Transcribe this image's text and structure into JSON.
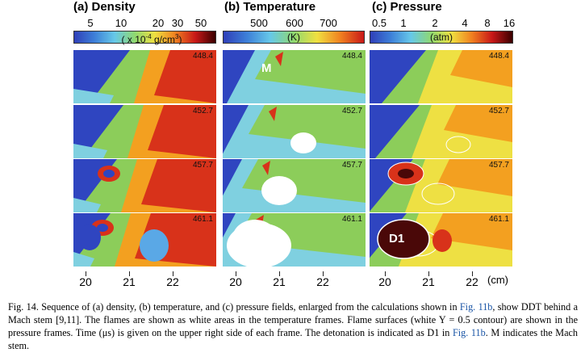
{
  "panels": [
    {
      "key": "density",
      "title": "(a) Density",
      "colorbar_ticks": [
        "5",
        "10",
        "20",
        "30",
        "50"
      ],
      "colorbar_unit": "( x 10",
      "colorbar_unit_exp": "-4",
      "colorbar_unit_tail": " g/cm",
      "colorbar_unit_exp2": "3",
      "colorbar_unit_close": ")",
      "colors": [
        "#2f3fb8",
        "#3d7fd8",
        "#66c8e8",
        "#8fd870",
        "#f0e040",
        "#f08020",
        "#c81818",
        "#3a0000"
      ]
    },
    {
      "key": "temperature",
      "title": "(b) Temperature",
      "colorbar_ticks": [
        "500",
        "600",
        "700"
      ],
      "colorbar_unit": "(K)",
      "colors": [
        "#2f3fb8",
        "#3d7fd8",
        "#66c8e8",
        "#8fd870",
        "#f0e040",
        "#f08020",
        "#c81818"
      ]
    },
    {
      "key": "pressure",
      "title": "(c) Pressure",
      "colorbar_ticks": [
        "0.5",
        "1",
        "2",
        "4",
        "8",
        "16"
      ],
      "colorbar_unit": "(atm)",
      "colors": [
        "#2f3fb8",
        "#3d7fd8",
        "#66c8e8",
        "#8fd870",
        "#f0e040",
        "#f08020",
        "#c81818",
        "#3a0000"
      ]
    }
  ],
  "frame_times": [
    "448.4",
    "452.7",
    "457.7",
    "461.1"
  ],
  "markers": {
    "mach_stem": "M",
    "detonation": "D1"
  },
  "x_axis": {
    "ticks": [
      "20",
      "21",
      "22"
    ],
    "unit": "(cm)"
  },
  "caption": {
    "part1": "Fig. 14. Sequence of (a) density, (b) temperature, and (c) pressure fields, enlarged from the calculations shown in ",
    "ref1": "Fig. 11b",
    "part2": ", show DDT behind a Mach stem [9,11]. The flames are shown as white areas in the temperature frames. Flame surfaces (white Y = 0.5 contour) are shown in the pressure frames. Time (μs) is given on the upper right side of each frame. The detonation is indicated as D1 in ",
    "ref2": "Fig. 11b",
    "part3": ". M indicates the Mach stem."
  }
}
